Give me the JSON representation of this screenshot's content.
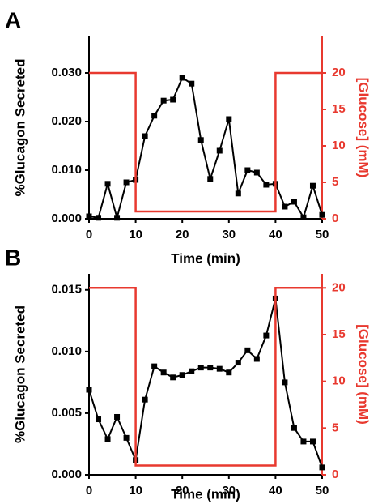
{
  "chart_data": [
    {
      "type": "line",
      "panel": "A",
      "xlabel": "Time (min)",
      "ylabel": "%Glucagon Secreted",
      "y2label": "[Glucose] (mM)",
      "xlim": [
        0,
        50
      ],
      "xticks": [
        0,
        10,
        20,
        30,
        40,
        50
      ],
      "ylim": [
        0,
        0.0375
      ],
      "yticks": [
        {
          "value": 0,
          "label": "0.000"
        },
        {
          "value": 0.01,
          "label": "0.010"
        },
        {
          "value": 0.02,
          "label": "0.020"
        },
        {
          "value": 0.03,
          "label": "0.030"
        }
      ],
      "y2lim": [
        0,
        25
      ],
      "y2ticks": [
        0,
        5,
        10,
        15,
        20
      ],
      "y2color": "#e8392f",
      "series": [
        {
          "color": "#000000",
          "marker": "square",
          "x": [
            0,
            2,
            4,
            6,
            8,
            10,
            12,
            14,
            16,
            18,
            20,
            22,
            24,
            26,
            28,
            30,
            32,
            34,
            36,
            38,
            40,
            42,
            44,
            46,
            48,
            50
          ],
          "values": [
            0.0005,
            0.0002,
            0.0072,
            0.0002,
            0.0075,
            0.008,
            0.017,
            0.0212,
            0.0243,
            0.0245,
            0.029,
            0.0278,
            0.0162,
            0.0082,
            0.014,
            0.0205,
            0.0052,
            0.01,
            0.0095,
            0.007,
            0.0072,
            0.0025,
            0.0035,
            0.0003,
            0.0068,
            0.0008
          ]
        },
        {
          "color": "#e8392f",
          "axis": "y2",
          "x": [
            0,
            10,
            10,
            40,
            40,
            50
          ],
          "values": [
            20,
            20,
            1,
            1,
            20,
            20
          ]
        }
      ]
    },
    {
      "type": "line",
      "panel": "B",
      "xlabel": "Time (min)",
      "ylabel": "%Glucagon Secreted",
      "y2label": "[Glucose] (mM)",
      "xlim": [
        0,
        50
      ],
      "xticks": [
        0,
        10,
        20,
        30,
        40,
        50
      ],
      "ylim": [
        0,
        0.0163
      ],
      "yticks": [
        {
          "value": 0,
          "label": "0.000"
        },
        {
          "value": 0.005,
          "label": "0.005"
        },
        {
          "value": 0.01,
          "label": "0.010"
        },
        {
          "value": 0.015,
          "label": "0.015"
        }
      ],
      "y2lim": [
        0,
        21.5
      ],
      "y2ticks": [
        0,
        5,
        10,
        15,
        20
      ],
      "y2color": "#e8392f",
      "series": [
        {
          "color": "#000000",
          "marker": "square",
          "x": [
            0,
            2,
            4,
            6,
            8,
            10,
            12,
            14,
            16,
            18,
            20,
            22,
            24,
            26,
            28,
            30,
            32,
            34,
            36,
            38,
            40,
            42,
            44,
            46,
            48,
            50
          ],
          "values": [
            0.0069,
            0.0045,
            0.0029,
            0.0047,
            0.003,
            0.0012,
            0.0061,
            0.0088,
            0.0083,
            0.0079,
            0.0081,
            0.0084,
            0.0087,
            0.0087,
            0.0086,
            0.0083,
            0.0091,
            0.0101,
            0.0094,
            0.0113,
            0.0143,
            0.0075,
            0.0038,
            0.0027,
            0.0027,
            0.0006
          ]
        },
        {
          "color": "#e8392f",
          "axis": "y2",
          "x": [
            0,
            10,
            10,
            40,
            40,
            50
          ],
          "values": [
            20,
            20,
            1,
            1,
            20,
            20
          ]
        }
      ]
    }
  ]
}
